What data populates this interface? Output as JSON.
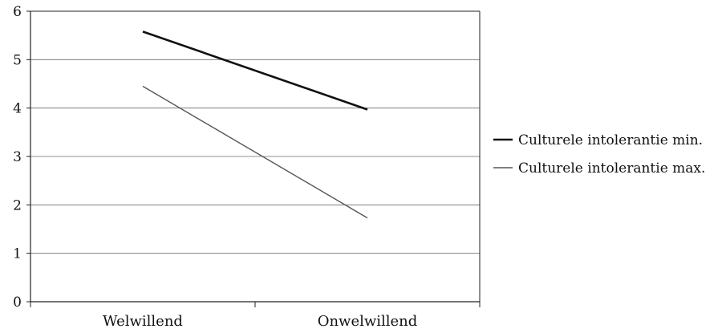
{
  "chart_data": {
    "type": "line",
    "categories": [
      "Welwillend",
      "Onwelwillend"
    ],
    "series": [
      {
        "name": "Culturele intolerantie min.",
        "values": [
          5.58,
          3.97
        ],
        "color": "#111111"
      },
      {
        "name": "Culturele intolerantie max.",
        "values": [
          4.45,
          1.73
        ],
        "color": "#555555"
      }
    ],
    "y_ticks": [
      "0",
      "1",
      "2",
      "3",
      "4",
      "5",
      "6"
    ],
    "ylim": [
      0,
      6
    ],
    "grid": true,
    "legend_position": "right",
    "title": "",
    "xlabel": "",
    "ylabel": ""
  }
}
